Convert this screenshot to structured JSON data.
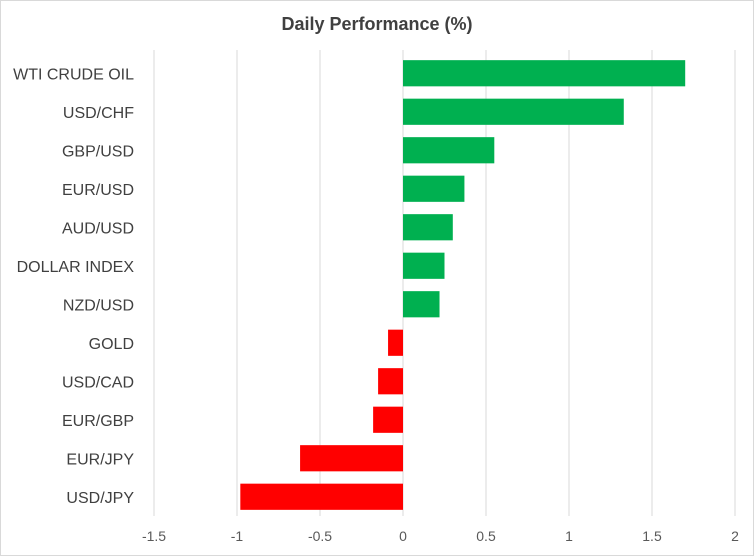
{
  "chart_data": {
    "type": "bar",
    "orientation": "horizontal",
    "title": "Daily Performance (%)",
    "categories": [
      "WTI CRUDE OIL",
      "USD/CHF",
      "GBP/USD",
      "EUR/USD",
      "AUD/USD",
      "DOLLAR INDEX",
      "NZD/USD",
      "GOLD",
      "USD/CAD",
      "EUR/GBP",
      "EUR/JPY",
      "USD/JPY"
    ],
    "values": [
      1.7,
      1.33,
      0.55,
      0.37,
      0.3,
      0.25,
      0.22,
      -0.09,
      -0.15,
      -0.18,
      -0.62,
      -0.98
    ],
    "xlim": [
      -1.5,
      2
    ],
    "xticks": [
      -1.5,
      -1,
      -0.5,
      0,
      0.5,
      1,
      1.5,
      2
    ],
    "xtick_labels": [
      "-1.5",
      "-1",
      "-0.5",
      "0",
      "0.5",
      "1",
      "1.5",
      "2"
    ],
    "grid": "vertical",
    "legend": "none",
    "colors": {
      "positive": "#00b050",
      "negative": "#ff0000",
      "grid": "#d9d9d9",
      "text": "#404040"
    }
  }
}
